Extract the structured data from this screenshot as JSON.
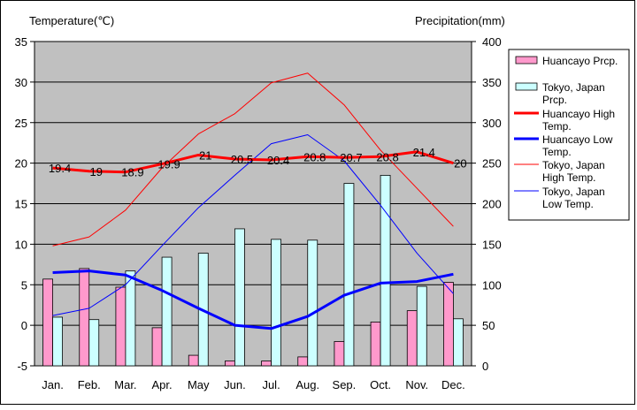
{
  "chart_data": {
    "type": "bar",
    "categories": [
      "Jan.",
      "Feb.",
      "Mar.",
      "Apr.",
      "May",
      "Jun.",
      "Jul.",
      "Aug.",
      "Sep.",
      "Oct.",
      "Nov.",
      "Dec."
    ],
    "ylabel_left": "Temperature(℃)",
    "ylabel_right": "Precipitation(mm)",
    "ylim_left": [
      -5,
      35
    ],
    "ylim_right": [
      0,
      400
    ],
    "left_ticks": [
      "35",
      "30",
      "25",
      "20",
      "15",
      "10",
      "5",
      "0",
      "-5"
    ],
    "right_ticks": [
      "400",
      "350",
      "300",
      "250",
      "200",
      "150",
      "100",
      "50",
      "0"
    ],
    "grid": true,
    "legend_position": "right",
    "colors": {
      "plot_bg": "#c0c0c0",
      "huancayo_prcp": "#ff99cc",
      "tokyo_prcp": "#ccffff",
      "huancayo_high": "#ff0000",
      "huancayo_low": "#0000ff",
      "tokyo_high": "#ff0000",
      "tokyo_low": "#0000ff"
    },
    "series": [
      {
        "name": "Huancayo Prcp.",
        "kind": "bar",
        "axis": "right",
        "values": [
          107,
          120,
          97,
          47,
          13,
          6,
          6,
          11,
          30,
          54,
          68,
          103
        ]
      },
      {
        "name": "Tokyo, Japan Prcp.",
        "kind": "bar",
        "axis": "right",
        "values": [
          60,
          57,
          117,
          134,
          139,
          169,
          156,
          155,
          225,
          235,
          98,
          58
        ]
      },
      {
        "name": "Huancayo High Temp.",
        "kind": "line",
        "axis": "left",
        "values": [
          19.4,
          19,
          18.9,
          19.9,
          21,
          20.5,
          20.4,
          20.8,
          20.7,
          20.8,
          21.4,
          20
        ]
      },
      {
        "name": "Huancayo Low Temp.",
        "kind": "line",
        "axis": "left",
        "values": [
          6.5,
          6.7,
          6.2,
          4.3,
          2.1,
          0,
          -0.4,
          1.1,
          3.7,
          5.2,
          5.4,
          6.3
        ]
      },
      {
        "name": "Tokyo, Japan High Temp.",
        "kind": "line",
        "axis": "left",
        "values": [
          9.8,
          10.9,
          14.2,
          19.4,
          23.6,
          26.1,
          29.9,
          31.1,
          27.2,
          21.6,
          16.9,
          12.2
        ]
      },
      {
        "name": "Tokyo, Japan Low Temp.",
        "kind": "line",
        "axis": "left",
        "values": [
          1.2,
          2.1,
          5,
          9.8,
          14.5,
          18.5,
          22.4,
          23.5,
          20.3,
          14.8,
          8.9,
          3.9
        ]
      }
    ],
    "data_labels": [
      "19.4",
      "19",
      "18.9",
      "19.9",
      "21",
      "20.5",
      "20.4",
      "20.8",
      "20.7",
      "20.8",
      "21.4",
      "20"
    ],
    "legend": [
      {
        "lines": [
          "Huancayo Prcp."
        ],
        "kind": "bar",
        "color_key": "huancayo_prcp"
      },
      {
        "lines": [
          "Tokyo, Japan",
          "Prcp."
        ],
        "kind": "bar",
        "color_key": "tokyo_prcp"
      },
      {
        "lines": [
          "Huancayo High",
          "Temp."
        ],
        "kind": "line-thick",
        "color_key": "huancayo_high"
      },
      {
        "lines": [
          "Huancayo Low",
          "Temp."
        ],
        "kind": "line-thick",
        "color_key": "huancayo_low"
      },
      {
        "lines": [
          "Tokyo, Japan",
          "High Temp."
        ],
        "kind": "line-thin",
        "color_key": "tokyo_high"
      },
      {
        "lines": [
          "Tokyo, Japan",
          "Low Temp."
        ],
        "kind": "line-thin",
        "color_key": "tokyo_low"
      }
    ]
  }
}
